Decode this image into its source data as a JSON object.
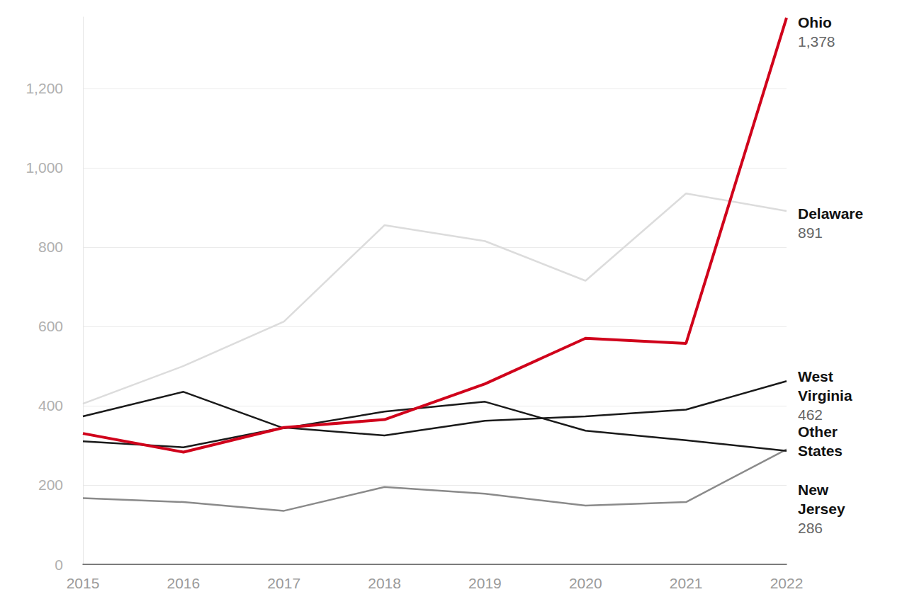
{
  "chart_data": {
    "type": "line",
    "categories": [
      "2015",
      "2016",
      "2017",
      "2018",
      "2019",
      "2020",
      "2021",
      "2022"
    ],
    "series": [
      {
        "name": "Delaware",
        "color": "#dcdcdc",
        "values": [
          405,
          500,
          612,
          855,
          815,
          715,
          935,
          891
        ],
        "value_labels": [
          null,
          null,
          null,
          null,
          null,
          null,
          null,
          "891"
        ]
      },
      {
        "name": "Other States",
        "color": "#8a8a8a",
        "values": [
          167,
          157,
          135,
          195,
          178,
          148,
          157,
          290
        ]
      },
      {
        "name": "New Jersey",
        "color": "#1a1a1a",
        "values": [
          373,
          435,
          343,
          385,
          410,
          337,
          313,
          286
        ],
        "value_labels": [
          null,
          null,
          null,
          null,
          null,
          null,
          null,
          "286"
        ]
      },
      {
        "name": "West Virginia",
        "color": "#1a1a1a",
        "values": [
          310,
          295,
          345,
          325,
          362,
          373,
          390,
          462
        ],
        "value_labels": [
          null,
          null,
          null,
          null,
          null,
          null,
          null,
          "462"
        ]
      },
      {
        "name": "Ohio",
        "color": "#d0021b",
        "values": [
          330,
          283,
          345,
          365,
          455,
          570,
          557,
          1378
        ],
        "value_labels": [
          null,
          null,
          null,
          null,
          null,
          null,
          null,
          "1,378"
        ]
      }
    ],
    "ylim": [
      0,
      1380
    ],
    "yticks": [
      0,
      200,
      400,
      600,
      800,
      {
        "value": 1000,
        "label": "1,000"
      },
      {
        "value": 1200,
        "label": "1,200"
      }
    ],
    "grid": true
  }
}
